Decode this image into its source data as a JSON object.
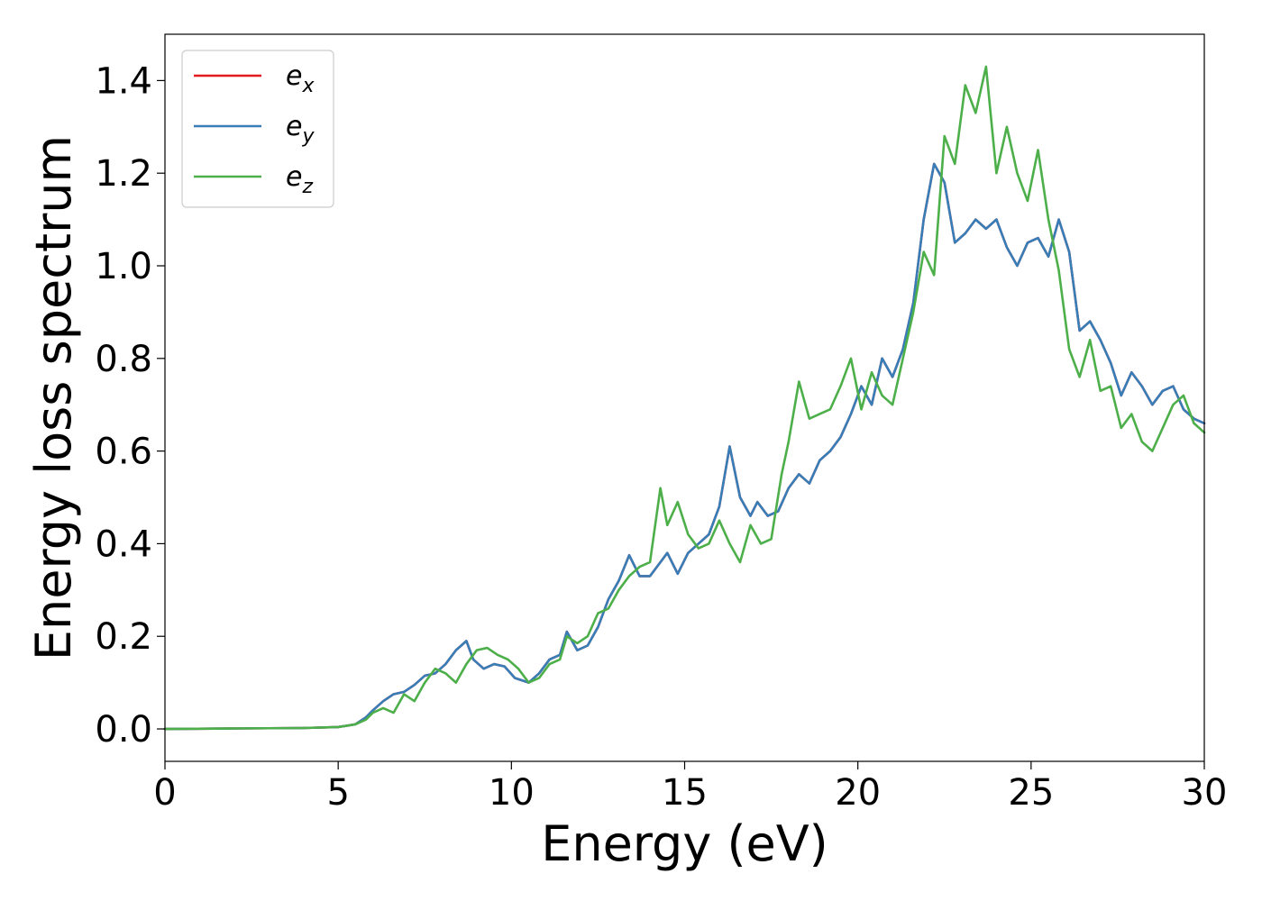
{
  "chart_data": {
    "type": "line",
    "title": "",
    "xlabel": "Energy (eV)",
    "ylabel": "Energy loss spectrum",
    "xlim": [
      0,
      30
    ],
    "ylim": [
      -0.07,
      1.5
    ],
    "xticks": [
      0,
      5,
      10,
      15,
      20,
      25,
      30
    ],
    "yticks": [
      0.0,
      0.2,
      0.4,
      0.6,
      0.8,
      1.0,
      1.2,
      1.4
    ],
    "xtick_labels": [
      "0",
      "5",
      "10",
      "15",
      "20",
      "25",
      "30"
    ],
    "ytick_labels": [
      "0.0",
      "0.2",
      "0.4",
      "0.6",
      "0.8",
      "1.0",
      "1.2",
      "1.4"
    ],
    "grid": false,
    "legend_position": "top-left",
    "series": [
      {
        "name": "e",
        "subscript": "x",
        "color": "#e41a1c",
        "x": [
          0,
          2,
          4,
          5,
          5.5,
          5.8,
          6,
          6.3,
          6.6,
          6.9,
          7.2,
          7.5,
          7.8,
          8.1,
          8.4,
          8.7,
          8.9,
          9.2,
          9.5,
          9.8,
          10.1,
          10.5,
          10.8,
          11.1,
          11.4,
          11.6,
          11.9,
          12.2,
          12.5,
          12.8,
          13.1,
          13.4,
          13.7,
          14,
          14.3,
          14.5,
          14.8,
          15.1,
          15.4,
          15.7,
          16,
          16.3,
          16.6,
          16.9,
          17.1,
          17.4,
          17.7,
          18,
          18.3,
          18.6,
          18.9,
          19.2,
          19.5,
          19.8,
          20.1,
          20.4,
          20.7,
          21,
          21.3,
          21.6,
          21.9,
          22.2,
          22.5,
          22.8,
          23.1,
          23.4,
          23.7,
          24,
          24.3,
          24.6,
          24.9,
          25.2,
          25.5,
          25.8,
          26.1,
          26.4,
          26.7,
          27,
          27.3,
          27.6,
          27.9,
          28.2,
          28.5,
          28.8,
          29.1,
          29.4,
          29.7,
          30
        ],
        "values": [
          0,
          0.001,
          0.002,
          0.004,
          0.01,
          0.025,
          0.04,
          0.06,
          0.075,
          0.08,
          0.095,
          0.115,
          0.12,
          0.14,
          0.17,
          0.19,
          0.15,
          0.13,
          0.14,
          0.135,
          0.11,
          0.1,
          0.12,
          0.15,
          0.16,
          0.21,
          0.17,
          0.18,
          0.22,
          0.28,
          0.32,
          0.375,
          0.33,
          0.33,
          0.36,
          0.38,
          0.335,
          0.38,
          0.4,
          0.42,
          0.48,
          0.61,
          0.5,
          0.46,
          0.49,
          0.46,
          0.47,
          0.52,
          0.55,
          0.53,
          0.58,
          0.6,
          0.63,
          0.68,
          0.74,
          0.7,
          0.8,
          0.76,
          0.82,
          0.92,
          1.1,
          1.22,
          1.18,
          1.05,
          1.07,
          1.1,
          1.08,
          1.1,
          1.04,
          1.0,
          1.05,
          1.06,
          1.02,
          1.1,
          1.03,
          0.86,
          0.88,
          0.84,
          0.79,
          0.72,
          0.77,
          0.74,
          0.7,
          0.73,
          0.74,
          0.69,
          0.67,
          0.66
        ]
      },
      {
        "name": "e",
        "subscript": "y",
        "color": "#377eb8",
        "x": [
          0,
          2,
          4,
          5,
          5.5,
          5.8,
          6,
          6.3,
          6.6,
          6.9,
          7.2,
          7.5,
          7.8,
          8.1,
          8.4,
          8.7,
          8.9,
          9.2,
          9.5,
          9.8,
          10.1,
          10.5,
          10.8,
          11.1,
          11.4,
          11.6,
          11.9,
          12.2,
          12.5,
          12.8,
          13.1,
          13.4,
          13.7,
          14,
          14.3,
          14.5,
          14.8,
          15.1,
          15.4,
          15.7,
          16,
          16.3,
          16.6,
          16.9,
          17.1,
          17.4,
          17.7,
          18,
          18.3,
          18.6,
          18.9,
          19.2,
          19.5,
          19.8,
          20.1,
          20.4,
          20.7,
          21,
          21.3,
          21.6,
          21.9,
          22.2,
          22.5,
          22.8,
          23.1,
          23.4,
          23.7,
          24,
          24.3,
          24.6,
          24.9,
          25.2,
          25.5,
          25.8,
          26.1,
          26.4,
          26.7,
          27,
          27.3,
          27.6,
          27.9,
          28.2,
          28.5,
          28.8,
          29.1,
          29.4,
          29.7,
          30
        ],
        "values": [
          0,
          0.001,
          0.002,
          0.004,
          0.01,
          0.025,
          0.04,
          0.06,
          0.075,
          0.08,
          0.095,
          0.115,
          0.12,
          0.14,
          0.17,
          0.19,
          0.15,
          0.13,
          0.14,
          0.135,
          0.11,
          0.1,
          0.12,
          0.15,
          0.16,
          0.21,
          0.17,
          0.18,
          0.22,
          0.28,
          0.32,
          0.375,
          0.33,
          0.33,
          0.36,
          0.38,
          0.335,
          0.38,
          0.4,
          0.42,
          0.48,
          0.61,
          0.5,
          0.46,
          0.49,
          0.46,
          0.47,
          0.52,
          0.55,
          0.53,
          0.58,
          0.6,
          0.63,
          0.68,
          0.74,
          0.7,
          0.8,
          0.76,
          0.82,
          0.92,
          1.1,
          1.22,
          1.18,
          1.05,
          1.07,
          1.1,
          1.08,
          1.1,
          1.04,
          1.0,
          1.05,
          1.06,
          1.02,
          1.1,
          1.03,
          0.86,
          0.88,
          0.84,
          0.79,
          0.72,
          0.77,
          0.74,
          0.7,
          0.73,
          0.74,
          0.69,
          0.67,
          0.66
        ]
      },
      {
        "name": "e",
        "subscript": "z",
        "color": "#4daf4a",
        "x": [
          0,
          2,
          4,
          5,
          5.5,
          5.8,
          6,
          6.3,
          6.6,
          6.9,
          7.2,
          7.5,
          7.8,
          8.1,
          8.4,
          8.7,
          9.0,
          9.3,
          9.6,
          9.9,
          10.2,
          10.5,
          10.8,
          11.1,
          11.4,
          11.6,
          11.9,
          12.2,
          12.5,
          12.8,
          13.1,
          13.4,
          13.7,
          14,
          14.3,
          14.5,
          14.8,
          15.1,
          15.4,
          15.7,
          16,
          16.3,
          16.6,
          16.9,
          17.2,
          17.5,
          17.8,
          18,
          18.3,
          18.6,
          18.9,
          19.2,
          19.5,
          19.8,
          20.1,
          20.4,
          20.7,
          21,
          21.3,
          21.6,
          21.9,
          22.2,
          22.5,
          22.8,
          23.1,
          23.4,
          23.7,
          24,
          24.3,
          24.6,
          24.9,
          25.2,
          25.5,
          25.8,
          26.1,
          26.4,
          26.7,
          27,
          27.3,
          27.6,
          27.9,
          28.2,
          28.5,
          28.8,
          29.1,
          29.4,
          29.7,
          30
        ],
        "values": [
          0,
          0.001,
          0.002,
          0.004,
          0.01,
          0.02,
          0.035,
          0.045,
          0.035,
          0.075,
          0.06,
          0.1,
          0.13,
          0.12,
          0.1,
          0.14,
          0.17,
          0.175,
          0.16,
          0.15,
          0.13,
          0.1,
          0.11,
          0.14,
          0.15,
          0.2,
          0.185,
          0.2,
          0.25,
          0.26,
          0.3,
          0.33,
          0.35,
          0.36,
          0.52,
          0.44,
          0.49,
          0.42,
          0.39,
          0.4,
          0.45,
          0.4,
          0.36,
          0.44,
          0.4,
          0.41,
          0.55,
          0.62,
          0.75,
          0.67,
          0.68,
          0.69,
          0.74,
          0.8,
          0.69,
          0.77,
          0.72,
          0.7,
          0.8,
          0.9,
          1.03,
          0.98,
          1.28,
          1.22,
          1.39,
          1.33,
          1.43,
          1.2,
          1.3,
          1.2,
          1.14,
          1.25,
          1.1,
          0.99,
          0.82,
          0.76,
          0.84,
          0.73,
          0.74,
          0.65,
          0.68,
          0.62,
          0.6,
          0.65,
          0.7,
          0.72,
          0.66,
          0.64
        ]
      }
    ]
  }
}
